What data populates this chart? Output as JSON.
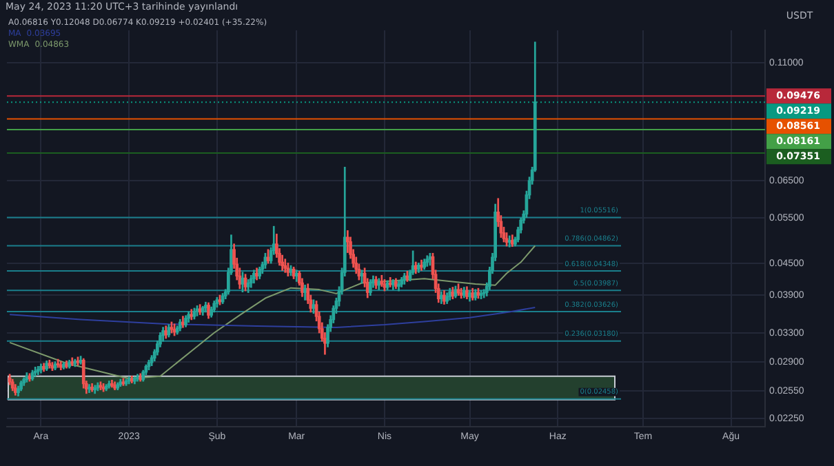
{
  "chart_data": {
    "type": "candlestick",
    "subtitle": "May 24, 2023 11:20 UTC+3 tarihinde yayınlandı",
    "annotations": [
      "A0.06816 Y0.12048 D0.06774 K0.09219 +0.02401 (+35.22%)",
      "0.03695",
      "0.04863"
    ],
    "ylabel": "USDT",
    "series": [
      {
        "type": "candlestick",
        "colors": [
          "#ef5350",
          "#ef5350",
          "#ef5350",
          "#26a69a",
          "#26a69a",
          "#26a69a",
          "#26a69a",
          "#ef5350",
          "#26a69a",
          "#26a69a",
          "#26a69a",
          "#26a69a",
          "#ef5350",
          "#26a69a",
          "#ef5350",
          "#ef5350",
          "#26a69a",
          "#ef5350",
          "#ef5350",
          "#26a69a",
          "#ef5350",
          "#26a69a",
          "#ef5350",
          "#26a69a",
          "#ef5350",
          "#26a69a",
          "#ef5350",
          "#ef5350",
          "#26a69a",
          "#ef5350",
          "#26a69a",
          "#26a69a",
          "#ef5350",
          "#ef5350",
          "#26a69a",
          "#26a69a",
          "#ef5350",
          "#ef5350",
          "#26a69a",
          "#26a69a",
          "#ef5350",
          "#26a69a",
          "#26a69a",
          "#ef5350",
          "#26a69a",
          "#26a69a",
          "#ef5350",
          "#26a69a",
          "#26a69a",
          "#26a69a",
          "#26a69a",
          "#26a69a",
          "#26a69a",
          "#26a69a",
          "#26a69a",
          "#ef5350",
          "#26a69a",
          "#ef5350",
          "#ef5350",
          "#26a69a",
          "#26a69a",
          "#ef5350",
          "#26a69a",
          "#26a69a",
          "#ef5350",
          "#26a69a",
          "#26a69a",
          "#ef5350",
          "#26a69a",
          "#26a69a",
          "#ef5350",
          "#26a69a",
          "#26a69a",
          "#26a69a",
          "#ef5350",
          "#26a69a",
          "#26a69a",
          "#26a69a",
          "#26a69a",
          "#ef5350",
          "#ef5350",
          "#ef5350",
          "#26a69a",
          "#ef5350",
          "#26a69a",
          "#26a69a",
          "#26a69a",
          "#ef5350",
          "#26a69a",
          "#26a69a",
          "#26a69a",
          "#ef5350",
          "#26a69a",
          "#26a69a",
          "#ef5350",
          "#ef5350",
          "#ef5350",
          "#ef5350",
          "#ef5350",
          "#26a69a",
          "#ef5350",
          "#26a69a",
          "#ef5350",
          "#ef5350",
          "#26a69a",
          "#ef5350",
          "#ef5350",
          "#26a69a",
          "#ef5350",
          "#ef5350",
          "#ef5350",
          "#ef5350",
          "#26a69a",
          "#26a69a",
          "#26a69a",
          "#26a69a",
          "#26a69a",
          "#26a69a",
          "#26a69a",
          "#ef5350",
          "#ef5350",
          "#ef5350",
          "#ef5350",
          "#ef5350",
          "#26a69a",
          "#ef5350",
          "#ef5350",
          "#26a69a",
          "#26a69a",
          "#ef5350",
          "#26a69a",
          "#ef5350",
          "#ef5350",
          "#26a69a",
          "#ef5350",
          "#26a69a",
          "#ef5350",
          "#26a69a",
          "#26a69a",
          "#26a69a",
          "#ef5350",
          "#26a69a",
          "#26a69a",
          "#ef5350",
          "#26a69a",
          "#ef5350",
          "#26a69a",
          "#26a69a",
          "#26a69a",
          "#ef5350",
          "#ef5350",
          "#ef5350",
          "#26a69a",
          "#ef5350",
          "#26a69a",
          "#26a69a",
          "#ef5350",
          "#26a69a",
          "#ef5350",
          "#ef5350",
          "#26a69a",
          "#ef5350",
          "#26a69a",
          "#ef5350",
          "#26a69a",
          "#ef5350",
          "#26a69a",
          "#26a69a",
          "#26a69a",
          "#26a69a",
          "#26a69a",
          "#26a69a",
          "#ef5350",
          "#ef5350",
          "#ef5350",
          "#ef5350",
          "#26a69a",
          "#ef5350",
          "#26a69a",
          "#26a69a",
          "#26a69a",
          "#26a69a",
          "#26a69a",
          "#26a69a",
          "#26a69a",
          "#26a69a"
        ],
        "x": [
          "2022-11-20",
          "2022-11-21",
          "2022-11-22",
          "2022-11-23",
          "2022-11-24",
          "2022-11-25",
          "2022-11-26",
          "2022-11-27",
          "2022-11-28",
          "2022-11-29",
          "2022-11-30",
          "2022-12-01",
          "2022-12-02",
          "2022-12-03",
          "2022-12-04",
          "2022-12-05",
          "2022-12-06",
          "2022-12-07",
          "2022-12-08",
          "2022-12-09",
          "2022-12-10",
          "2022-12-11",
          "2022-12-12",
          "2022-12-13",
          "2022-12-14",
          "2022-12-15",
          "2022-12-16",
          "2022-12-17",
          "2022-12-18",
          "2022-12-19",
          "2022-12-20",
          "2022-12-21",
          "2022-12-22",
          "2022-12-23",
          "2022-12-24",
          "2022-12-25",
          "2022-12-26",
          "2022-12-27",
          "2022-12-28",
          "2022-12-29",
          "2022-12-30",
          "2022-12-31",
          "2023-01-01",
          "2023-01-02",
          "2023-01-03",
          "2023-01-04",
          "2023-01-05",
          "2023-01-06",
          "2023-01-07",
          "2023-01-08",
          "2023-01-09",
          "2023-01-10",
          "2023-01-11",
          "2023-01-12",
          "2023-01-13",
          "2023-01-14",
          "2023-01-15",
          "2023-01-16",
          "2023-01-17",
          "2023-01-18",
          "2023-01-19",
          "2023-01-20",
          "2023-01-21",
          "2023-01-22",
          "2023-01-23",
          "2023-01-24",
          "2023-01-25",
          "2023-01-26",
          "2023-01-27",
          "2023-01-28",
          "2023-01-29",
          "2023-01-30",
          "2023-01-31",
          "2023-02-01",
          "2023-02-02",
          "2023-02-03",
          "2023-02-04",
          "2023-02-05",
          "2023-02-06",
          "2023-02-07",
          "2023-02-08",
          "2023-02-09",
          "2023-02-10",
          "2023-02-11",
          "2023-02-12",
          "2023-02-13",
          "2023-02-14",
          "2023-02-15",
          "2023-02-16",
          "2023-02-17",
          "2023-02-18",
          "2023-02-19",
          "2023-02-20",
          "2023-02-21",
          "2023-02-22",
          "2023-02-23",
          "2023-02-24",
          "2023-02-25",
          "2023-02-26",
          "2023-02-27",
          "2023-02-28",
          "2023-03-01",
          "2023-03-02",
          "2023-03-03",
          "2023-03-04",
          "2023-03-05",
          "2023-03-06",
          "2023-03-07",
          "2023-03-08",
          "2023-03-09",
          "2023-03-10",
          "2023-03-11",
          "2023-03-12",
          "2023-03-13",
          "2023-03-14",
          "2023-03-15",
          "2023-03-16",
          "2023-03-17",
          "2023-03-18",
          "2023-03-19",
          "2023-03-20",
          "2023-03-21",
          "2023-03-22",
          "2023-03-23",
          "2023-03-24",
          "2023-03-25",
          "2023-03-26",
          "2023-03-27",
          "2023-03-28",
          "2023-03-29",
          "2023-03-30",
          "2023-03-31",
          "2023-04-01",
          "2023-04-02",
          "2023-04-03",
          "2023-04-04",
          "2023-04-05",
          "2023-04-06",
          "2023-04-07",
          "2023-04-08",
          "2023-04-09",
          "2023-04-10",
          "2023-04-11",
          "2023-04-12",
          "2023-04-13",
          "2023-04-14",
          "2023-04-15",
          "2023-04-16",
          "2023-04-17",
          "2023-04-18",
          "2023-04-19",
          "2023-04-20",
          "2023-04-21",
          "2023-04-22",
          "2023-04-23",
          "2023-04-24",
          "2023-04-25",
          "2023-04-26",
          "2023-04-27",
          "2023-04-28",
          "2023-04-29",
          "2023-04-30",
          "2023-05-01",
          "2023-05-02",
          "2023-05-03",
          "2023-05-04",
          "2023-05-05",
          "2023-05-06",
          "2023-05-07",
          "2023-05-08",
          "2023-05-09",
          "2023-05-10",
          "2023-05-11",
          "2023-05-12",
          "2023-05-13",
          "2023-05-14",
          "2023-05-15",
          "2023-05-16",
          "2023-05-17",
          "2023-05-18",
          "2023-05-19",
          "2023-05-20",
          "2023-05-21",
          "2023-05-22",
          "2023-05-23",
          "2023-05-24"
        ],
        "ohlc": [
          [
            0.027,
            0.0274,
            0.0262,
            0.0265
          ],
          [
            0.0265,
            0.0268,
            0.0255,
            0.0258
          ],
          [
            0.0258,
            0.0262,
            0.025,
            0.0253
          ],
          [
            0.0253,
            0.026,
            0.0249,
            0.0257
          ],
          [
            0.0257,
            0.0266,
            0.0255,
            0.0264
          ],
          [
            0.0264,
            0.027,
            0.0261,
            0.0268
          ],
          [
            0.0268,
            0.0276,
            0.0265,
            0.0272
          ],
          [
            0.0272,
            0.0275,
            0.0266,
            0.0269
          ],
          [
            0.0269,
            0.0279,
            0.0267,
            0.0276
          ],
          [
            0.0276,
            0.0283,
            0.0272,
            0.0278
          ],
          [
            0.0278,
            0.0284,
            0.0274,
            0.028
          ],
          [
            0.028,
            0.0287,
            0.0276,
            0.0284
          ],
          [
            0.0284,
            0.0288,
            0.0278,
            0.0281
          ],
          [
            0.0281,
            0.0291,
            0.0279,
            0.0288
          ],
          [
            0.0288,
            0.0292,
            0.0282,
            0.0285
          ],
          [
            0.0285,
            0.0289,
            0.0279,
            0.0282
          ],
          [
            0.0282,
            0.029,
            0.028,
            0.0287
          ],
          [
            0.0287,
            0.0293,
            0.0283,
            0.0286
          ],
          [
            0.0286,
            0.029,
            0.028,
            0.0283
          ],
          [
            0.0283,
            0.0289,
            0.0281,
            0.0287
          ],
          [
            0.0287,
            0.0291,
            0.0282,
            0.0284
          ],
          [
            0.0284,
            0.0292,
            0.0282,
            0.029
          ],
          [
            0.029,
            0.0295,
            0.0285,
            0.0288
          ],
          [
            0.0288,
            0.0293,
            0.0284,
            0.0291
          ],
          [
            0.0291,
            0.0296,
            0.0286,
            0.0289
          ],
          [
            0.0289,
            0.0297,
            0.0287,
            0.0292
          ],
          [
            0.0292,
            0.0294,
            0.0258,
            0.0263
          ],
          [
            0.0263,
            0.0266,
            0.0252,
            0.0257
          ],
          [
            0.0257,
            0.0262,
            0.0253,
            0.0259
          ],
          [
            0.0259,
            0.0263,
            0.0254,
            0.0256
          ],
          [
            0.0256,
            0.0261,
            0.0252,
            0.0258
          ],
          [
            0.0258,
            0.0264,
            0.0255,
            0.0261
          ],
          [
            0.0261,
            0.0265,
            0.0256,
            0.0259
          ],
          [
            0.0259,
            0.0263,
            0.0254,
            0.0257
          ],
          [
            0.0257,
            0.0262,
            0.0255,
            0.026
          ],
          [
            0.026,
            0.0266,
            0.0258,
            0.0263
          ],
          [
            0.0263,
            0.0267,
            0.0259,
            0.0261
          ],
          [
            0.0261,
            0.0265,
            0.0256,
            0.0258
          ],
          [
            0.0258,
            0.0264,
            0.0256,
            0.0262
          ],
          [
            0.0262,
            0.0268,
            0.026,
            0.0265
          ],
          [
            0.0265,
            0.0269,
            0.0261,
            0.0263
          ],
          [
            0.0263,
            0.0268,
            0.0261,
            0.0266
          ],
          [
            0.0266,
            0.0271,
            0.0263,
            0.0268
          ],
          [
            0.0268,
            0.0272,
            0.0264,
            0.0266
          ],
          [
            0.0266,
            0.0271,
            0.0263,
            0.0269
          ],
          [
            0.0269,
            0.0274,
            0.0266,
            0.0271
          ],
          [
            0.0271,
            0.0275,
            0.0266,
            0.0268
          ],
          [
            0.0268,
            0.0279,
            0.0266,
            0.0277
          ],
          [
            0.0277,
            0.0286,
            0.0274,
            0.0284
          ],
          [
            0.0284,
            0.0292,
            0.028,
            0.0289
          ],
          [
            0.0289,
            0.0298,
            0.0285,
            0.0295
          ],
          [
            0.0295,
            0.0306,
            0.0291,
            0.0303
          ],
          [
            0.0303,
            0.0318,
            0.0299,
            0.0314
          ],
          [
            0.0314,
            0.033,
            0.031,
            0.0326
          ],
          [
            0.0326,
            0.0338,
            0.0318,
            0.0333
          ],
          [
            0.0333,
            0.034,
            0.0322,
            0.0327
          ],
          [
            0.0327,
            0.0342,
            0.0324,
            0.0338
          ],
          [
            0.0338,
            0.0346,
            0.033,
            0.0335
          ],
          [
            0.0335,
            0.0343,
            0.0326,
            0.0331
          ],
          [
            0.0331,
            0.034,
            0.0328,
            0.0337
          ],
          [
            0.0337,
            0.035,
            0.0333,
            0.0346
          ],
          [
            0.0346,
            0.0355,
            0.0338,
            0.0342
          ],
          [
            0.0342,
            0.0356,
            0.0339,
            0.0352
          ],
          [
            0.0352,
            0.0362,
            0.0346,
            0.0358
          ],
          [
            0.0358,
            0.0366,
            0.035,
            0.0355
          ],
          [
            0.0355,
            0.0368,
            0.0351,
            0.0363
          ],
          [
            0.0363,
            0.0372,
            0.0356,
            0.0367
          ],
          [
            0.0367,
            0.0374,
            0.0358,
            0.0362
          ],
          [
            0.0362,
            0.0371,
            0.0357,
            0.0369
          ],
          [
            0.0369,
            0.0378,
            0.0362,
            0.0373
          ],
          [
            0.0373,
            0.0377,
            0.0352,
            0.0357
          ],
          [
            0.0357,
            0.037,
            0.0354,
            0.0366
          ],
          [
            0.0366,
            0.038,
            0.0362,
            0.0376
          ],
          [
            0.0376,
            0.0386,
            0.037,
            0.0382
          ],
          [
            0.0382,
            0.039,
            0.0374,
            0.0379
          ],
          [
            0.0379,
            0.0393,
            0.0376,
            0.0389
          ],
          [
            0.0389,
            0.04,
            0.0384,
            0.0396
          ],
          [
            0.0396,
            0.044,
            0.0392,
            0.0432
          ],
          [
            0.0432,
            0.051,
            0.0428,
            0.0478
          ],
          [
            0.0478,
            0.049,
            0.044,
            0.0448
          ],
          [
            0.0448,
            0.046,
            0.0418,
            0.0425
          ],
          [
            0.0425,
            0.044,
            0.0402,
            0.041
          ],
          [
            0.041,
            0.0432,
            0.0396,
            0.0421
          ],
          [
            0.0421,
            0.0428,
            0.0398,
            0.0405
          ],
          [
            0.0405,
            0.0418,
            0.0395,
            0.0412
          ],
          [
            0.0412,
            0.0426,
            0.0404,
            0.042
          ],
          [
            0.042,
            0.0436,
            0.0412,
            0.043
          ],
          [
            0.043,
            0.044,
            0.0418,
            0.0425
          ],
          [
            0.0425,
            0.0442,
            0.042,
            0.0438
          ],
          [
            0.0438,
            0.0452,
            0.043,
            0.0447
          ],
          [
            0.0447,
            0.047,
            0.044,
            0.0462
          ],
          [
            0.0462,
            0.0478,
            0.045,
            0.0455
          ],
          [
            0.0455,
            0.0482,
            0.045,
            0.0476
          ],
          [
            0.0476,
            0.053,
            0.0468,
            0.049
          ],
          [
            0.049,
            0.0512,
            0.0462,
            0.047
          ],
          [
            0.047,
            0.048,
            0.0446,
            0.0452
          ],
          [
            0.0452,
            0.0466,
            0.0436,
            0.0445
          ],
          [
            0.0445,
            0.0458,
            0.0432,
            0.044
          ],
          [
            0.044,
            0.045,
            0.0425,
            0.0432
          ],
          [
            0.0432,
            0.0445,
            0.0426,
            0.0438
          ],
          [
            0.0438,
            0.0442,
            0.042,
            0.0425
          ],
          [
            0.0425,
            0.0436,
            0.0415,
            0.043
          ],
          [
            0.043,
            0.0434,
            0.0408,
            0.0412
          ],
          [
            0.0412,
            0.042,
            0.0388,
            0.0395
          ],
          [
            0.0395,
            0.0408,
            0.0382,
            0.0402
          ],
          [
            0.0402,
            0.041,
            0.0376,
            0.0382
          ],
          [
            0.0382,
            0.039,
            0.0362,
            0.0368
          ],
          [
            0.0368,
            0.0382,
            0.036,
            0.0374
          ],
          [
            0.0374,
            0.038,
            0.0348,
            0.0355
          ],
          [
            0.0355,
            0.0362,
            0.033,
            0.0336
          ],
          [
            0.0336,
            0.0345,
            0.0318,
            0.0322
          ],
          [
            0.0322,
            0.033,
            0.03,
            0.0315
          ],
          [
            0.0315,
            0.0342,
            0.031,
            0.0338
          ],
          [
            0.0338,
            0.0356,
            0.0332,
            0.035
          ],
          [
            0.035,
            0.0372,
            0.0345,
            0.0368
          ],
          [
            0.0368,
            0.0385,
            0.036,
            0.038
          ],
          [
            0.038,
            0.0405,
            0.0372,
            0.0398
          ],
          [
            0.0398,
            0.044,
            0.0392,
            0.0432
          ],
          [
            0.0432,
            0.069,
            0.0425,
            0.0505
          ],
          [
            0.0505,
            0.052,
            0.0472,
            0.0495
          ],
          [
            0.0495,
            0.0505,
            0.046,
            0.0468
          ],
          [
            0.0468,
            0.0478,
            0.0442,
            0.045
          ],
          [
            0.045,
            0.0462,
            0.043,
            0.0438
          ],
          [
            0.0438,
            0.0448,
            0.0418,
            0.0425
          ],
          [
            0.0425,
            0.0436,
            0.0412,
            0.043
          ],
          [
            0.043,
            0.044,
            0.0405,
            0.0412
          ],
          [
            0.0412,
            0.042,
            0.0386,
            0.0395
          ],
          [
            0.0395,
            0.0418,
            0.039,
            0.0412
          ],
          [
            0.0412,
            0.0425,
            0.0404,
            0.0418
          ],
          [
            0.0418,
            0.0424,
            0.0402,
            0.0408
          ],
          [
            0.0408,
            0.042,
            0.04,
            0.0415
          ],
          [
            0.0415,
            0.0426,
            0.0406,
            0.041
          ],
          [
            0.041,
            0.0418,
            0.0398,
            0.0404
          ],
          [
            0.0404,
            0.0416,
            0.04,
            0.0412
          ],
          [
            0.0412,
            0.0422,
            0.0405,
            0.0409
          ],
          [
            0.0409,
            0.0418,
            0.04,
            0.0414
          ],
          [
            0.0414,
            0.042,
            0.0402,
            0.0406
          ],
          [
            0.0406,
            0.0416,
            0.0398,
            0.041
          ],
          [
            0.041,
            0.0422,
            0.0405,
            0.0418
          ],
          [
            0.0418,
            0.043,
            0.041,
            0.0425
          ],
          [
            0.0425,
            0.0434,
            0.0415,
            0.042
          ],
          [
            0.042,
            0.0436,
            0.0416,
            0.0432
          ],
          [
            0.0432,
            0.0475,
            0.0428,
            0.0445
          ],
          [
            0.0445,
            0.0452,
            0.043,
            0.0438
          ],
          [
            0.0438,
            0.045,
            0.0432,
            0.0446
          ],
          [
            0.0446,
            0.0456,
            0.0436,
            0.0442
          ],
          [
            0.0442,
            0.0458,
            0.0438,
            0.0452
          ],
          [
            0.0452,
            0.0465,
            0.0444,
            0.0458
          ],
          [
            0.0458,
            0.047,
            0.0446,
            0.0463
          ],
          [
            0.0463,
            0.047,
            0.042,
            0.0428
          ],
          [
            0.0428,
            0.0436,
            0.0395,
            0.0402
          ],
          [
            0.0402,
            0.041,
            0.0378,
            0.0384
          ],
          [
            0.0384,
            0.0396,
            0.0376,
            0.039
          ],
          [
            0.039,
            0.0398,
            0.0375,
            0.038
          ],
          [
            0.038,
            0.0394,
            0.0376,
            0.0388
          ],
          [
            0.0388,
            0.0402,
            0.0382,
            0.0396
          ],
          [
            0.0396,
            0.0404,
            0.0384,
            0.0389
          ],
          [
            0.0389,
            0.0406,
            0.0386,
            0.04
          ],
          [
            0.04,
            0.041,
            0.039,
            0.0394
          ],
          [
            0.0394,
            0.0402,
            0.0385,
            0.039
          ],
          [
            0.039,
            0.0404,
            0.0386,
            0.0398
          ],
          [
            0.0398,
            0.0405,
            0.0384,
            0.0388
          ],
          [
            0.0388,
            0.0398,
            0.038,
            0.0394
          ],
          [
            0.0394,
            0.0402,
            0.0382,
            0.0386
          ],
          [
            0.0386,
            0.04,
            0.0382,
            0.0395
          ],
          [
            0.0395,
            0.0402,
            0.0385,
            0.039
          ],
          [
            0.039,
            0.0398,
            0.0384,
            0.0393
          ],
          [
            0.0393,
            0.04,
            0.0386,
            0.0395
          ],
          [
            0.0395,
            0.0412,
            0.0389,
            0.0406
          ],
          [
            0.0406,
            0.0442,
            0.04,
            0.0436
          ],
          [
            0.0436,
            0.047,
            0.043,
            0.0462
          ],
          [
            0.0462,
            0.0585,
            0.0455,
            0.0565
          ],
          [
            0.0565,
            0.06,
            0.053,
            0.0542
          ],
          [
            0.0542,
            0.0556,
            0.0505,
            0.0515
          ],
          [
            0.0515,
            0.0528,
            0.0495,
            0.0502
          ],
          [
            0.0502,
            0.0515,
            0.0486,
            0.0494
          ],
          [
            0.0494,
            0.0508,
            0.0484,
            0.0498
          ],
          [
            0.0498,
            0.051,
            0.0485,
            0.049
          ],
          [
            0.049,
            0.0505,
            0.0486,
            0.05
          ],
          [
            0.05,
            0.0528,
            0.0495,
            0.0522
          ],
          [
            0.0522,
            0.055,
            0.0515,
            0.0545
          ],
          [
            0.0545,
            0.0568,
            0.0538,
            0.056
          ],
          [
            0.056,
            0.062,
            0.0552,
            0.061
          ],
          [
            0.061,
            0.066,
            0.06,
            0.065
          ],
          [
            0.065,
            0.069,
            0.064,
            0.06816
          ],
          [
            0.06816,
            0.12048,
            0.06774,
            0.09219
          ]
        ]
      },
      {
        "name": "MA",
        "type": "line",
        "color": "#2e3f9e",
        "x": [
          "2022-11-20",
          "2022-12-15",
          "2023-01-15",
          "2023-02-15",
          "2023-03-15",
          "2023-04-01",
          "2023-04-15",
          "2023-05-01",
          "2023-05-15",
          "2023-05-24"
        ],
        "values": [
          0.0358,
          0.035,
          0.0343,
          0.034,
          0.0338,
          0.0342,
          0.0347,
          0.0353,
          0.0362,
          0.03695
        ]
      },
      {
        "name": "WMA",
        "type": "line",
        "color": "#7d9a6c",
        "x": [
          "2022-11-20",
          "2022-12-10",
          "2023-01-01",
          "2023-01-12",
          "2023-01-31",
          "2023-02-09",
          "2023-02-18",
          "2023-02-27",
          "2023-03-09",
          "2023-03-15",
          "2023-03-24",
          "2023-04-15",
          "2023-05-03",
          "2023-05-10",
          "2023-05-14",
          "2023-05-19",
          "2023-05-24"
        ],
        "values": [
          0.0316,
          0.0288,
          0.0269,
          0.0272,
          0.033,
          0.0357,
          0.0385,
          0.0403,
          0.04,
          0.0393,
          0.0412,
          0.042,
          0.041,
          0.0408,
          0.043,
          0.0452,
          0.04863
        ]
      }
    ],
    "ref_lines": [
      {
        "axis": "y",
        "value": 0.09476,
        "label": "0.09476",
        "color": "#b8283a"
      },
      {
        "axis": "y",
        "value": 0.09219,
        "label": "0.09219",
        "color": "#089981",
        "line_style": "dotted"
      },
      {
        "axis": "y",
        "value": 0.08561,
        "label": "0.08561",
        "color": "#e65100"
      },
      {
        "axis": "y",
        "value": 0.08161,
        "label": "0.08161",
        "color": "#43a047"
      },
      {
        "axis": "y",
        "value": 0.07351,
        "label": "0.07351",
        "color": "#1b5e20"
      },
      {
        "axis": "y",
        "value": 0.05516,
        "label": "1(0.05516)",
        "color": "#1a7f8c"
      },
      {
        "axis": "y",
        "value": 0.04862,
        "label": "0.786(0.04862)",
        "color": "#1a7f8c"
      },
      {
        "axis": "y",
        "value": 0.04348,
        "label": "0.618(0.04348)",
        "color": "#1a7f8c"
      },
      {
        "axis": "y",
        "value": 0.03987,
        "label": "0.5(0.03987)",
        "color": "#1a7f8c"
      },
      {
        "axis": "y",
        "value": 0.03626,
        "label": "0.382(0.03626)",
        "color": "#1a7f8c"
      },
      {
        "axis": "y",
        "value": 0.0318,
        "label": "0.236(0.03180)",
        "color": "#1a7f8c"
      },
      {
        "axis": "y",
        "value": 0.02458,
        "label": "0(0.02458)",
        "color": "#1a7f8c"
      }
    ],
    "bands": [
      {
        "axis": "y",
        "from": 0.0245,
        "to": 0.0272,
        "color": "#23402e"
      }
    ],
    "log": "y",
    "xlim": [
      "2022-11-19",
      "2023-08-13"
    ],
    "xticks": [
      {
        "value": "2022-12-01",
        "label": "Ara"
      },
      {
        "value": "2023-01-01",
        "label": "2023"
      },
      {
        "value": "2023-02-01",
        "label": "Şub"
      },
      {
        "value": "2023-03-01",
        "label": "Mar"
      },
      {
        "value": "2023-04-01",
        "label": "Nis"
      },
      {
        "value": "2023-05-01",
        "label": "May"
      },
      {
        "value": "2023-06-01",
        "label": "Haz"
      },
      {
        "value": "2023-07-01",
        "label": "Tem"
      },
      {
        "value": "2023-08-01",
        "label": "Ağu"
      }
    ],
    "ylim": [
      0.0217,
      0.127
    ],
    "yticks": [
      {
        "value": 0.0225,
        "label": "0.02250"
      },
      {
        "value": 0.0255,
        "label": "0.02550"
      },
      {
        "value": 0.029,
        "label": "0.02900"
      },
      {
        "value": 0.033,
        "label": "0.03300"
      },
      {
        "value": 0.039,
        "label": "0.03900"
      },
      {
        "value": 0.045,
        "label": "0.04500"
      },
      {
        "value": 0.055,
        "label": "0.05500"
      },
      {
        "value": 0.065,
        "label": "0.06500"
      },
      {
        "value": 0.11,
        "label": "0.11000"
      }
    ],
    "grid": true,
    "legend": "top left"
  }
}
